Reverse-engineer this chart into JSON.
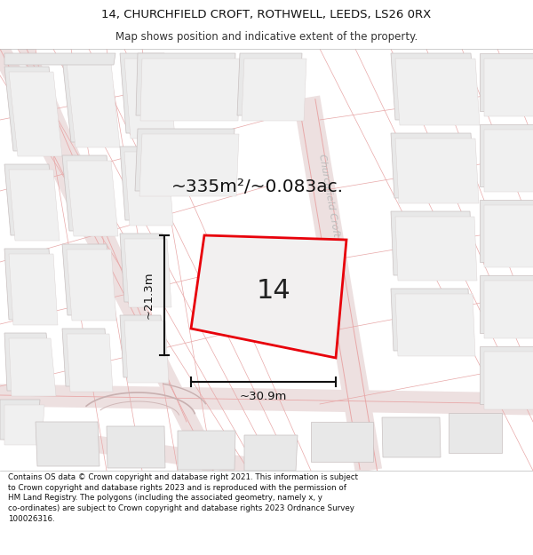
{
  "title_line1": "14, CHURCHFIELD CROFT, ROTHWELL, LEEDS, LS26 0RX",
  "title_line2": "Map shows position and indicative extent of the property.",
  "area_label": "~335m²/~0.083ac.",
  "plot_number": "14",
  "dim_width": "~30.9m",
  "dim_height": "~21.3m",
  "street_label": "Churchfield Croft",
  "footer_line1": "Contains OS data © Crown copyright and database right 2021. This information is subject",
  "footer_line2": "to Crown copyright and database rights 2023 and is reproduced with the permission of",
  "footer_line3": "HM Land Registry. The polygons (including the associated geometry, namely x, y",
  "footer_line4": "co-ordinates) are subject to Crown copyright and database rights 2023 Ordnance Survey",
  "footer_line5": "100026316.",
  "bg_color": "#ffffff",
  "map_bg": "#f5f5f5",
  "plot_color": "#e8000a",
  "plot_fill": "#f0f0f0",
  "road_color_light": "#f5c8c8",
  "road_color_line": "#e8a8a8",
  "building_fill": "#e8e8e8",
  "building_outline": "#c8c0c0",
  "building_inner_fill": "#f0f0f0",
  "building_inner_outline": "#d8d0d0",
  "dim_color": "#111111",
  "street_label_color": "#bbbbbb",
  "title_color": "#111111",
  "subtitle_color": "#333333",
  "footer_color": "#111111"
}
